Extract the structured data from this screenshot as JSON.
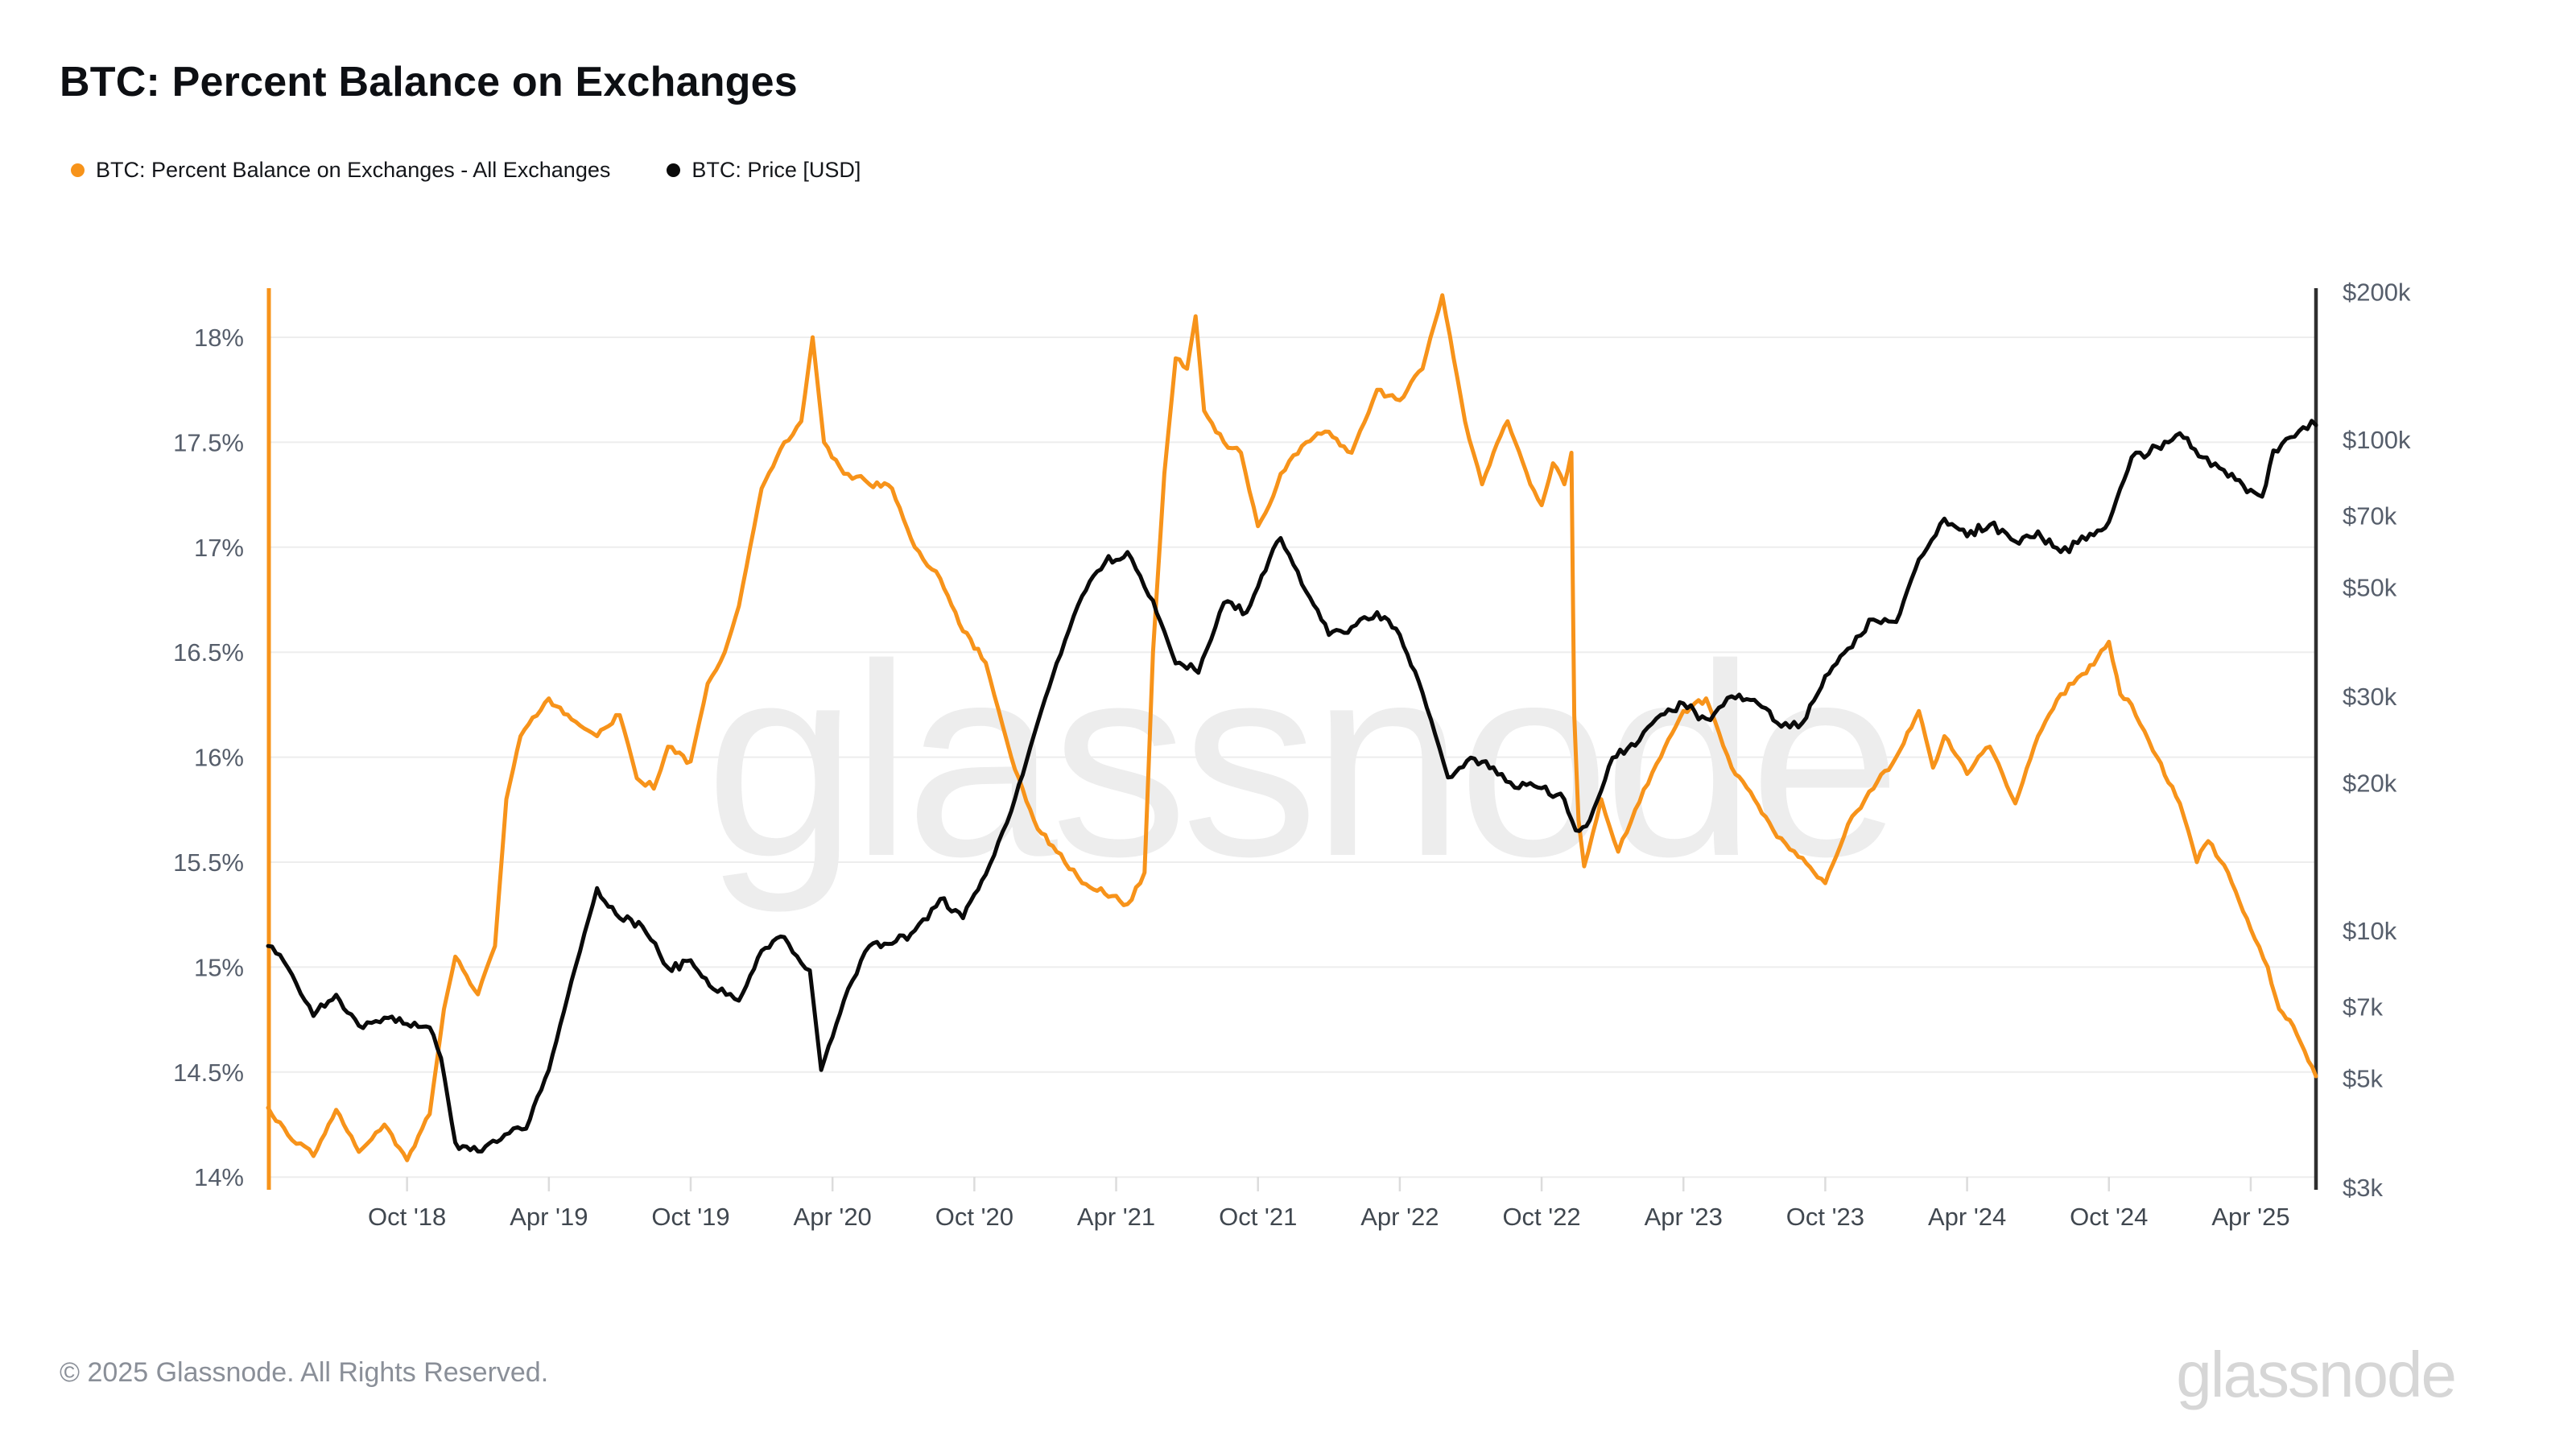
{
  "title": "BTC: Percent Balance on Exchanges",
  "watermark": "glassnode",
  "legend": {
    "items": [
      {
        "label": "BTC: Percent Balance on Exchanges - All Exchanges",
        "color": "#f7931a"
      },
      {
        "label": "BTC: Price [USD]",
        "color": "#0a0a0a"
      }
    ]
  },
  "footer": {
    "copyright": "© 2025 Glassnode. All Rights Reserved.",
    "brand": "glassnode"
  },
  "colors": {
    "accent_orange": "#f7931a",
    "price_black": "#0a0a0a",
    "grid": "#ededed",
    "tick_text": "#565e6b",
    "left_spine": "#f7931a",
    "right_spine": "#2e2e2e"
  },
  "chart_data": {
    "type": "line",
    "title": "BTC: Percent Balance on Exchanges",
    "grid": true,
    "legend_position": "top-left",
    "x_axis": {
      "unit": "date",
      "start_year": 2018.26,
      "end_year": 2025.48,
      "ticks": [
        {
          "t": 2018.75,
          "label": "Oct '18"
        },
        {
          "t": 2019.25,
          "label": "Apr '19"
        },
        {
          "t": 2019.75,
          "label": "Oct '19"
        },
        {
          "t": 2020.25,
          "label": "Apr '20"
        },
        {
          "t": 2020.75,
          "label": "Oct '20"
        },
        {
          "t": 2021.25,
          "label": "Apr '21"
        },
        {
          "t": 2021.75,
          "label": "Oct '21"
        },
        {
          "t": 2022.25,
          "label": "Apr '22"
        },
        {
          "t": 2022.75,
          "label": "Oct '22"
        },
        {
          "t": 2023.25,
          "label": "Apr '23"
        },
        {
          "t": 2023.75,
          "label": "Oct '23"
        },
        {
          "t": 2024.25,
          "label": "Apr '24"
        },
        {
          "t": 2024.75,
          "label": "Oct '24"
        },
        {
          "t": 2025.25,
          "label": "Apr '25"
        }
      ]
    },
    "y_left": {
      "unit": "%",
      "scale": "linear",
      "min": 14,
      "max": 18,
      "ticks": [
        {
          "v": 18,
          "label": "18%"
        },
        {
          "v": 17.5,
          "label": "17.5%"
        },
        {
          "v": 17,
          "label": "17%"
        },
        {
          "v": 16.5,
          "label": "16.5%"
        },
        {
          "v": 16,
          "label": "16%"
        },
        {
          "v": 15.5,
          "label": "15.5%"
        },
        {
          "v": 15,
          "label": "15%"
        },
        {
          "v": 14.5,
          "label": "14.5%"
        },
        {
          "v": 14,
          "label": "14%"
        }
      ]
    },
    "y_right": {
      "unit": "USD",
      "scale": "log",
      "ticks": [
        {
          "v": 200000,
          "label": "$200k"
        },
        {
          "v": 100000,
          "label": "$100k"
        },
        {
          "v": 70000,
          "label": "$70k"
        },
        {
          "v": 50000,
          "label": "$50k"
        },
        {
          "v": 30000,
          "label": "$30k"
        },
        {
          "v": 20000,
          "label": "$20k"
        },
        {
          "v": 10000,
          "label": "$10k"
        },
        {
          "v": 7000,
          "label": "$7k"
        },
        {
          "v": 5000,
          "label": "$5k"
        },
        {
          "v": 3000,
          "label": "$3k"
        }
      ]
    },
    "series": [
      {
        "name": "BTC: Percent Balance on Exchanges - All Exchanges",
        "axis": "left",
        "color": "#f7931a",
        "points": [
          [
            2018.26,
            14.33
          ],
          [
            2018.33,
            14.2
          ],
          [
            2018.42,
            14.1
          ],
          [
            2018.5,
            14.32
          ],
          [
            2018.58,
            14.12
          ],
          [
            2018.67,
            14.25
          ],
          [
            2018.75,
            14.08
          ],
          [
            2018.83,
            14.3
          ],
          [
            2018.88,
            14.8
          ],
          [
            2018.92,
            15.05
          ],
          [
            2019.0,
            14.87
          ],
          [
            2019.06,
            15.1
          ],
          [
            2019.1,
            15.8
          ],
          [
            2019.15,
            16.1
          ],
          [
            2019.25,
            16.28
          ],
          [
            2019.33,
            16.18
          ],
          [
            2019.42,
            16.1
          ],
          [
            2019.5,
            16.2
          ],
          [
            2019.56,
            15.9
          ],
          [
            2019.62,
            15.85
          ],
          [
            2019.67,
            16.05
          ],
          [
            2019.75,
            15.98
          ],
          [
            2019.81,
            16.35
          ],
          [
            2019.87,
            16.5
          ],
          [
            2019.92,
            16.72
          ],
          [
            2020.0,
            17.28
          ],
          [
            2020.08,
            17.5
          ],
          [
            2020.14,
            17.6
          ],
          [
            2020.18,
            18.0
          ],
          [
            2020.22,
            17.5
          ],
          [
            2020.29,
            17.35
          ],
          [
            2020.38,
            17.3
          ],
          [
            2020.46,
            17.28
          ],
          [
            2020.54,
            17.0
          ],
          [
            2020.63,
            16.85
          ],
          [
            2020.71,
            16.6
          ],
          [
            2020.79,
            16.45
          ],
          [
            2020.88,
            16.0
          ],
          [
            2020.96,
            15.7
          ],
          [
            2021.04,
            15.55
          ],
          [
            2021.13,
            15.4
          ],
          [
            2021.21,
            15.35
          ],
          [
            2021.29,
            15.3
          ],
          [
            2021.35,
            15.45
          ],
          [
            2021.38,
            16.5
          ],
          [
            2021.42,
            17.35
          ],
          [
            2021.46,
            17.9
          ],
          [
            2021.5,
            17.85
          ],
          [
            2021.53,
            18.1
          ],
          [
            2021.56,
            17.65
          ],
          [
            2021.63,
            17.5
          ],
          [
            2021.69,
            17.45
          ],
          [
            2021.75,
            17.1
          ],
          [
            2021.79,
            17.2
          ],
          [
            2021.83,
            17.35
          ],
          [
            2021.92,
            17.5
          ],
          [
            2022.0,
            17.55
          ],
          [
            2022.08,
            17.45
          ],
          [
            2022.17,
            17.75
          ],
          [
            2022.25,
            17.7
          ],
          [
            2022.33,
            17.85
          ],
          [
            2022.4,
            18.2
          ],
          [
            2022.44,
            17.9
          ],
          [
            2022.48,
            17.6
          ],
          [
            2022.54,
            17.3
          ],
          [
            2022.58,
            17.45
          ],
          [
            2022.63,
            17.6
          ],
          [
            2022.71,
            17.3
          ],
          [
            2022.75,
            17.2
          ],
          [
            2022.79,
            17.4
          ],
          [
            2022.83,
            17.3
          ],
          [
            2022.855,
            17.45
          ],
          [
            2022.865,
            16.2
          ],
          [
            2022.88,
            15.7
          ],
          [
            2022.9,
            15.48
          ],
          [
            2022.96,
            15.8
          ],
          [
            2023.02,
            15.55
          ],
          [
            2023.08,
            15.75
          ],
          [
            2023.17,
            16.0
          ],
          [
            2023.25,
            16.22
          ],
          [
            2023.33,
            16.28
          ],
          [
            2023.42,
            15.95
          ],
          [
            2023.5,
            15.8
          ],
          [
            2023.58,
            15.62
          ],
          [
            2023.67,
            15.52
          ],
          [
            2023.75,
            15.4
          ],
          [
            2023.83,
            15.68
          ],
          [
            2023.92,
            15.85
          ],
          [
            2024.0,
            16.0
          ],
          [
            2024.08,
            16.22
          ],
          [
            2024.13,
            15.95
          ],
          [
            2024.17,
            16.1
          ],
          [
            2024.25,
            15.92
          ],
          [
            2024.33,
            16.05
          ],
          [
            2024.42,
            15.78
          ],
          [
            2024.5,
            16.1
          ],
          [
            2024.58,
            16.3
          ],
          [
            2024.67,
            16.4
          ],
          [
            2024.75,
            16.55
          ],
          [
            2024.79,
            16.3
          ],
          [
            2024.83,
            16.25
          ],
          [
            2024.92,
            16.0
          ],
          [
            2025.0,
            15.78
          ],
          [
            2025.06,
            15.5
          ],
          [
            2025.1,
            15.6
          ],
          [
            2025.17,
            15.45
          ],
          [
            2025.25,
            15.18
          ],
          [
            2025.31,
            15.0
          ],
          [
            2025.35,
            14.8
          ],
          [
            2025.4,
            14.72
          ],
          [
            2025.44,
            14.6
          ],
          [
            2025.48,
            14.48
          ]
        ]
      },
      {
        "name": "BTC: Price [USD]",
        "axis": "right",
        "color": "#0a0a0a",
        "points": [
          [
            2018.26,
            9300
          ],
          [
            2018.33,
            8400
          ],
          [
            2018.42,
            6700
          ],
          [
            2018.5,
            7400
          ],
          [
            2018.58,
            6400
          ],
          [
            2018.67,
            6650
          ],
          [
            2018.75,
            6450
          ],
          [
            2018.83,
            6350
          ],
          [
            2018.87,
            5500
          ],
          [
            2018.92,
            3700
          ],
          [
            2019.0,
            3550
          ],
          [
            2019.08,
            3750
          ],
          [
            2019.17,
            3950
          ],
          [
            2019.25,
            5200
          ],
          [
            2019.33,
            7900
          ],
          [
            2019.42,
            12200
          ],
          [
            2019.5,
            10600
          ],
          [
            2019.58,
            10200
          ],
          [
            2019.67,
            8400
          ],
          [
            2019.75,
            8700
          ],
          [
            2019.83,
            7600
          ],
          [
            2019.92,
            7200
          ],
          [
            2020.0,
            9100
          ],
          [
            2020.08,
            9700
          ],
          [
            2020.17,
            8300
          ],
          [
            2020.21,
            5200
          ],
          [
            2020.29,
            7200
          ],
          [
            2020.38,
            9300
          ],
          [
            2020.46,
            9400
          ],
          [
            2020.54,
            10000
          ],
          [
            2020.63,
            11600
          ],
          [
            2020.71,
            10600
          ],
          [
            2020.79,
            13000
          ],
          [
            2020.88,
            17500
          ],
          [
            2020.96,
            25000
          ],
          [
            2021.04,
            35000
          ],
          [
            2021.13,
            48000
          ],
          [
            2021.21,
            56000
          ],
          [
            2021.29,
            59000
          ],
          [
            2021.38,
            47000
          ],
          [
            2021.46,
            35000
          ],
          [
            2021.54,
            33500
          ],
          [
            2021.63,
            46500
          ],
          [
            2021.71,
            44500
          ],
          [
            2021.79,
            57000
          ],
          [
            2021.83,
            63000
          ],
          [
            2021.92,
            49000
          ],
          [
            2022.0,
            40000
          ],
          [
            2022.08,
            41500
          ],
          [
            2022.17,
            44500
          ],
          [
            2022.25,
            40000
          ],
          [
            2022.33,
            30500
          ],
          [
            2022.42,
            20500
          ],
          [
            2022.5,
            22500
          ],
          [
            2022.58,
            21500
          ],
          [
            2022.67,
            19500
          ],
          [
            2022.75,
            19500
          ],
          [
            2022.83,
            18500
          ],
          [
            2022.87,
            16000
          ],
          [
            2022.92,
            16800
          ],
          [
            2023.0,
            22500
          ],
          [
            2023.08,
            23800
          ],
          [
            2023.17,
            27500
          ],
          [
            2023.25,
            29000
          ],
          [
            2023.33,
            27000
          ],
          [
            2023.42,
            30000
          ],
          [
            2023.5,
            29500
          ],
          [
            2023.58,
            26500
          ],
          [
            2023.67,
            26500
          ],
          [
            2023.75,
            33000
          ],
          [
            2023.83,
            37500
          ],
          [
            2023.92,
            43000
          ],
          [
            2024.0,
            42500
          ],
          [
            2024.08,
            57000
          ],
          [
            2024.17,
            69000
          ],
          [
            2024.25,
            63500
          ],
          [
            2024.33,
            67000
          ],
          [
            2024.42,
            62000
          ],
          [
            2024.5,
            65000
          ],
          [
            2024.58,
            59000
          ],
          [
            2024.67,
            62500
          ],
          [
            2024.75,
            68000
          ],
          [
            2024.83,
            92000
          ],
          [
            2024.92,
            96500
          ],
          [
            2025.0,
            103000
          ],
          [
            2025.08,
            92000
          ],
          [
            2025.17,
            84000
          ],
          [
            2025.25,
            79000
          ],
          [
            2025.29,
            76500
          ],
          [
            2025.33,
            95000
          ],
          [
            2025.42,
            104000
          ],
          [
            2025.48,
            107000
          ]
        ]
      }
    ]
  }
}
